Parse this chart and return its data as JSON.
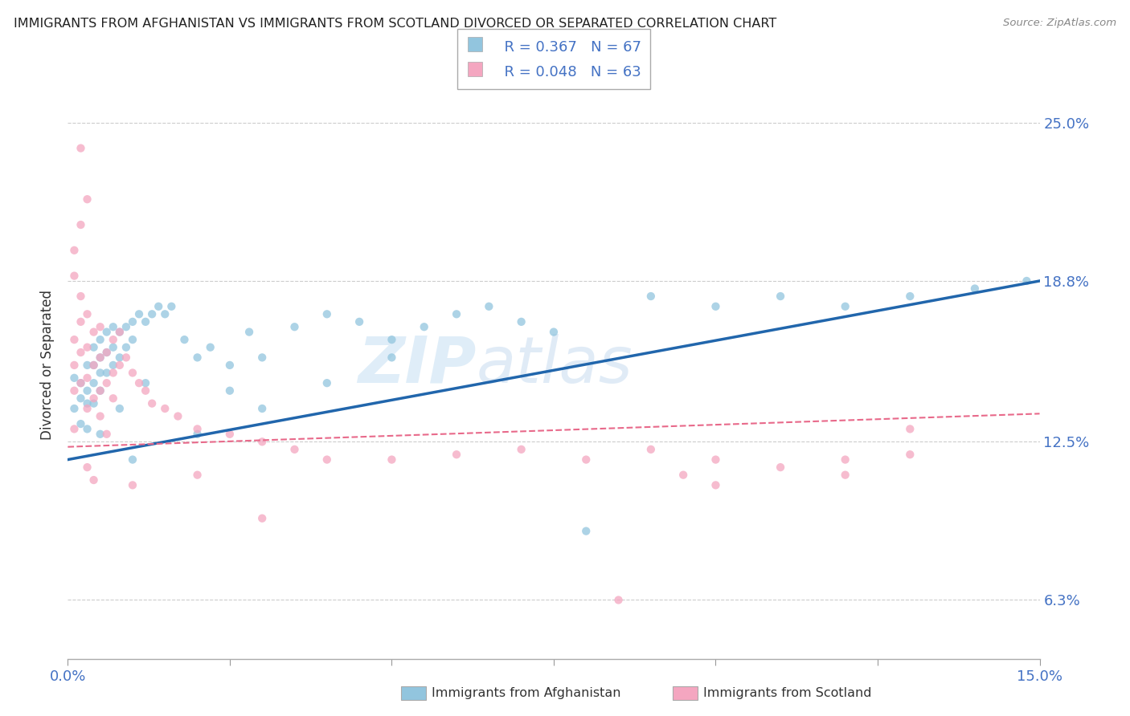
{
  "title": "IMMIGRANTS FROM AFGHANISTAN VS IMMIGRANTS FROM SCOTLAND DIVORCED OR SEPARATED CORRELATION CHART",
  "source": "Source: ZipAtlas.com",
  "ylabel": "Divorced or Separated",
  "xlim": [
    0.0,
    0.15
  ],
  "ylim": [
    0.04,
    0.27
  ],
  "yticks": [
    0.063,
    0.125,
    0.188,
    0.25
  ],
  "ytick_labels": [
    "6.3%",
    "12.5%",
    "18.8%",
    "25.0%"
  ],
  "xticks": [
    0.0,
    0.025,
    0.05,
    0.075,
    0.1,
    0.125,
    0.15
  ],
  "legend_r1": "R = 0.367",
  "legend_n1": "N = 67",
  "legend_r2": "R = 0.048",
  "legend_n2": "N = 63",
  "color_afghanistan": "#92c5de",
  "color_scotland": "#f4a6c0",
  "color_trendline_afghanistan": "#2166ac",
  "color_trendline_scotland": "#e8698a",
  "af_trend_x0": 0.0,
  "af_trend_y0": 0.118,
  "af_trend_x1": 0.15,
  "af_trend_y1": 0.188,
  "sc_trend_x0": 0.0,
  "sc_trend_y0": 0.123,
  "sc_trend_x1": 0.15,
  "sc_trend_y1": 0.136,
  "afghanistan_x": [
    0.001,
    0.001,
    0.002,
    0.002,
    0.002,
    0.003,
    0.003,
    0.003,
    0.003,
    0.004,
    0.004,
    0.004,
    0.004,
    0.005,
    0.005,
    0.005,
    0.005,
    0.006,
    0.006,
    0.006,
    0.007,
    0.007,
    0.007,
    0.008,
    0.008,
    0.009,
    0.009,
    0.01,
    0.01,
    0.011,
    0.012,
    0.013,
    0.014,
    0.015,
    0.016,
    0.018,
    0.02,
    0.022,
    0.025,
    0.028,
    0.03,
    0.035,
    0.04,
    0.045,
    0.05,
    0.055,
    0.06,
    0.065,
    0.07,
    0.075,
    0.08,
    0.09,
    0.1,
    0.11,
    0.12,
    0.13,
    0.14,
    0.148,
    0.05,
    0.04,
    0.03,
    0.02,
    0.01,
    0.005,
    0.008,
    0.012,
    0.025
  ],
  "afghanistan_y": [
    0.15,
    0.138,
    0.142,
    0.132,
    0.148,
    0.155,
    0.145,
    0.14,
    0.13,
    0.162,
    0.155,
    0.148,
    0.14,
    0.165,
    0.158,
    0.152,
    0.145,
    0.168,
    0.16,
    0.152,
    0.17,
    0.162,
    0.155,
    0.168,
    0.158,
    0.17,
    0.162,
    0.172,
    0.165,
    0.175,
    0.172,
    0.175,
    0.178,
    0.175,
    0.178,
    0.165,
    0.158,
    0.162,
    0.155,
    0.168,
    0.158,
    0.17,
    0.175,
    0.172,
    0.165,
    0.17,
    0.175,
    0.178,
    0.172,
    0.168,
    0.09,
    0.182,
    0.178,
    0.182,
    0.178,
    0.182,
    0.185,
    0.188,
    0.158,
    0.148,
    0.138,
    0.128,
    0.118,
    0.128,
    0.138,
    0.148,
    0.145
  ],
  "scotland_x": [
    0.001,
    0.001,
    0.001,
    0.001,
    0.002,
    0.002,
    0.002,
    0.002,
    0.003,
    0.003,
    0.003,
    0.003,
    0.004,
    0.004,
    0.004,
    0.005,
    0.005,
    0.005,
    0.006,
    0.006,
    0.007,
    0.007,
    0.008,
    0.008,
    0.009,
    0.01,
    0.011,
    0.012,
    0.013,
    0.015,
    0.017,
    0.02,
    0.025,
    0.03,
    0.035,
    0.04,
    0.05,
    0.06,
    0.07,
    0.08,
    0.09,
    0.1,
    0.11,
    0.12,
    0.13,
    0.005,
    0.006,
    0.007,
    0.003,
    0.002,
    0.001,
    0.001,
    0.002,
    0.003,
    0.004,
    0.01,
    0.02,
    0.03,
    0.1,
    0.12,
    0.13,
    0.095,
    0.085
  ],
  "scotland_y": [
    0.13,
    0.145,
    0.155,
    0.165,
    0.148,
    0.16,
    0.172,
    0.24,
    0.138,
    0.15,
    0.162,
    0.175,
    0.142,
    0.155,
    0.168,
    0.145,
    0.158,
    0.17,
    0.148,
    0.16,
    0.152,
    0.165,
    0.155,
    0.168,
    0.158,
    0.152,
    0.148,
    0.145,
    0.14,
    0.138,
    0.135,
    0.13,
    0.128,
    0.125,
    0.122,
    0.118,
    0.118,
    0.12,
    0.122,
    0.118,
    0.122,
    0.118,
    0.115,
    0.118,
    0.12,
    0.135,
    0.128,
    0.142,
    0.22,
    0.21,
    0.2,
    0.19,
    0.182,
    0.115,
    0.11,
    0.108,
    0.112,
    0.095,
    0.108,
    0.112,
    0.13,
    0.112,
    0.063
  ]
}
